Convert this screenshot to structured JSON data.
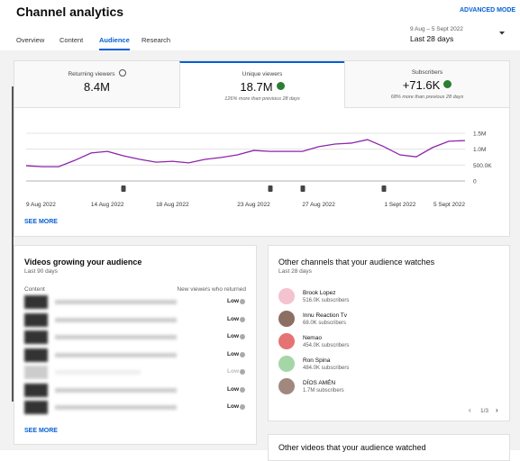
{
  "header": {
    "title": "Channel analytics",
    "advanced_mode": "ADVANCED MODE",
    "date_range": "9 Aug – 5 Sept 2022",
    "period": "Last 28 days"
  },
  "tabs": [
    "Overview",
    "Content",
    "Audience",
    "Research"
  ],
  "active_tab": 2,
  "metrics": [
    {
      "label": "Returning viewers",
      "value": "8.4M"
    },
    {
      "label": "Unique viewers",
      "value": "18.7M",
      "note": "126% more than previous 28 days"
    },
    {
      "label": "Subscribers",
      "value": "+71.6K",
      "note": "68% more than previous 28 days"
    }
  ],
  "active_metric": 1,
  "chart_data": {
    "type": "line",
    "color": "#8e24aa",
    "categories": [
      "9 Aug 2022",
      null,
      null,
      null,
      null,
      "14 Aug 2022",
      null,
      null,
      null,
      "18 Aug 2022",
      null,
      null,
      null,
      null,
      "23 Aug 2022",
      null,
      null,
      null,
      "27 Aug 2022",
      null,
      null,
      null,
      null,
      "1 Sept 2022",
      null,
      null,
      null,
      "5 Sept 2022"
    ],
    "values": [
      480000,
      450000,
      450000,
      650000,
      880000,
      930000,
      790000,
      680000,
      590000,
      620000,
      570000,
      680000,
      740000,
      820000,
      960000,
      930000,
      930000,
      930000,
      1080000,
      1160000,
      1190000,
      1300000,
      1080000,
      820000,
      760000,
      1050000,
      1250000,
      1270000
    ],
    "ylim": [
      0,
      1500000
    ],
    "yticks": [
      0,
      {
        "value": 500000,
        "label": "500.0K"
      },
      {
        "value": 1000000,
        "label": "1.0M"
      },
      {
        "value": 1500000,
        "label": "1.5M"
      }
    ],
    "grid": true
  },
  "chart_see_more": "SEE MORE",
  "videos_card": {
    "title": "Videos growing your audience",
    "subtitle": "Last 90 days",
    "col_content": "Content",
    "col_metric": "New viewers who returned",
    "rows": [
      "Low",
      "Low",
      "Low",
      "Low",
      "Low",
      "Low",
      "Low"
    ],
    "see_more": "SEE MORE"
  },
  "channels_card": {
    "title": "Other channels that your audience watches",
    "subtitle": "Last 28 days",
    "channels": [
      {
        "name": "Brook Lopez",
        "subscribers": "516.0K subscribers"
      },
      {
        "name": "Innu Reaction Tv",
        "subscribers": "68.0K subscribers"
      },
      {
        "name": "Nemao",
        "subscribers": "454.0K subscribers"
      },
      {
        "name": "Ron Spina",
        "subscribers": "484.0K subscribers"
      },
      {
        "name": "DÍOS AMÉN",
        "subscribers": "1.7M subscribers"
      }
    ],
    "page": "1/3"
  },
  "videos_watched_card": {
    "title": "Other videos that your audience watched"
  }
}
